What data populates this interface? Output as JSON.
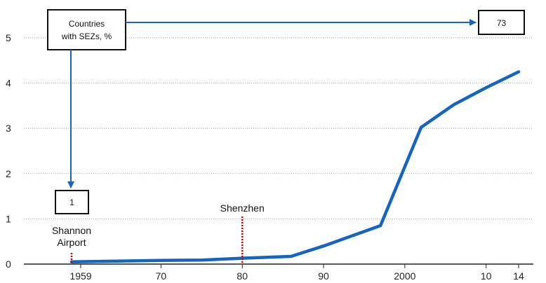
{
  "chart_data": {
    "type": "line",
    "title": "",
    "xlabel": "",
    "ylabel": "",
    "xlim": [
      1958,
      2017
    ],
    "ylim": [
      0,
      5.5
    ],
    "grid": "horizontal dotted",
    "x_ticks": [
      1959,
      1970,
      1980,
      1990,
      2000,
      2010,
      2014
    ],
    "x_tick_labels": [
      "1959",
      "70",
      "80",
      "90",
      "2000",
      "10",
      "14"
    ],
    "y_ticks": [
      0,
      1,
      2,
      3,
      4,
      5
    ],
    "y_tick_labels": [
      "0",
      "1",
      "2",
      "3",
      "4",
      "5"
    ],
    "series": [
      {
        "name": "",
        "color": "#1565c0",
        "x": [
          1959,
          1970,
          1975,
          1980,
          1986,
          1990,
          1997,
          2002,
          2006,
          2010,
          2014
        ],
        "y": [
          0.05,
          0.08,
          0.09,
          0.13,
          0.17,
          0.4,
          0.85,
          3.02,
          3.52,
          3.9,
          4.25
        ]
      }
    ],
    "annotations": {
      "box_label": "Countries\nwith SEZs, %",
      "start_value": "1",
      "end_value": "73",
      "events": [
        {
          "label": "Shannon\nAirport",
          "x": 1959,
          "color": "#cc0000"
        },
        {
          "label": "Shenzhen",
          "x": 1980,
          "color": "#cc0000"
        }
      ]
    },
    "colors": {
      "line": "#1565c0",
      "arrow": "#1565c0",
      "event_marker": "#cc0000",
      "grid": "#999999",
      "axis": "#222222"
    }
  }
}
